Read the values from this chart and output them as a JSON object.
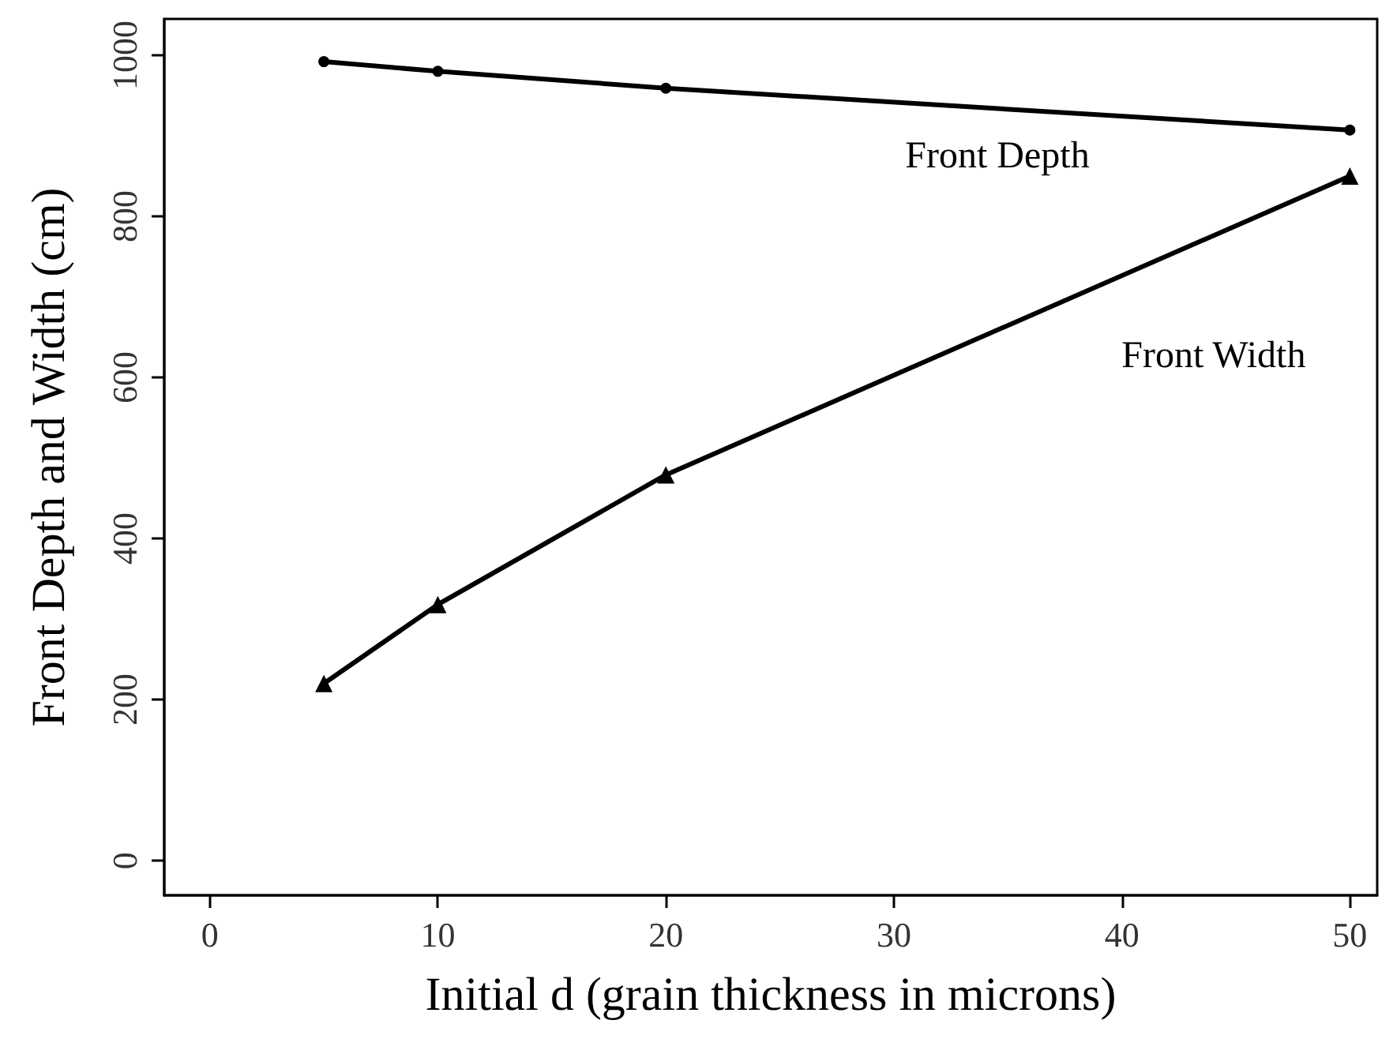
{
  "chart_data": {
    "type": "line",
    "xlabel": "Initial d (grain thickness in microns)",
    "ylabel": "Front Depth and Width (cm)",
    "x": [
      5,
      10,
      20,
      50
    ],
    "series": [
      {
        "name": "Front Depth",
        "color": "#000000",
        "marker": "circle",
        "values": [
          992,
          980,
          959,
          907
        ]
      },
      {
        "name": "Front Width",
        "color": "#000000",
        "marker": "triangle",
        "values": [
          220,
          318,
          479,
          850
        ]
      }
    ],
    "xlim": [
      -2,
      51.2
    ],
    "ylim": [
      -43,
      1045
    ],
    "xticks": [
      0,
      10,
      20,
      30,
      40,
      50
    ],
    "yticks": [
      0,
      200,
      400,
      600,
      800,
      1000
    ],
    "grid": false,
    "legend": false,
    "line_style": "solid"
  }
}
